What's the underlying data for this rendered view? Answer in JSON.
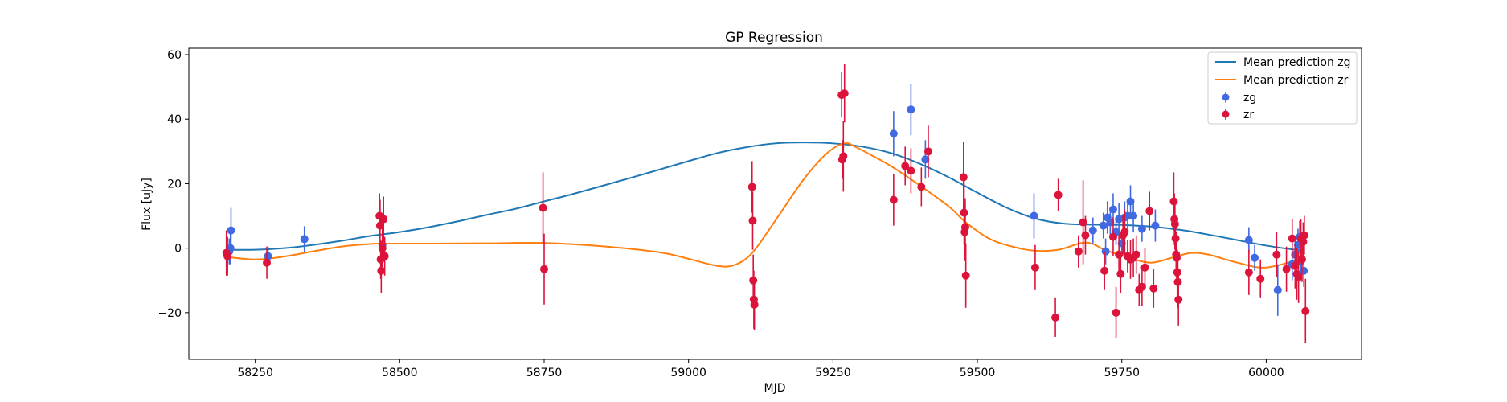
{
  "chart_data": {
    "type": "scatter",
    "title": "GP Regression",
    "xlabel": "MJD",
    "ylabel": "Flux [uJy]",
    "xlim": [
      58135,
      60165
    ],
    "ylim": [
      -34.5,
      62
    ],
    "xticks": [
      58250,
      58500,
      58750,
      59000,
      59250,
      59500,
      59750,
      60000
    ],
    "yticks": [
      -20,
      0,
      20,
      40,
      60
    ],
    "grid": false,
    "legend_position": "top-right",
    "lines": [
      {
        "name": "Mean prediction zg",
        "color": "#1f77b4",
        "x": [
          58200,
          58250,
          58300,
          58350,
          58400,
          58450,
          58500,
          58550,
          58600,
          58650,
          58700,
          58750,
          58800,
          58850,
          58900,
          58950,
          59000,
          59050,
          59100,
          59150,
          59200,
          59250,
          59300,
          59350,
          59400,
          59450,
          59500,
          59550,
          59600,
          59650,
          59700,
          59750,
          59800,
          59850,
          59900,
          59950,
          60000,
          60050,
          60066
        ],
        "y": [
          -0.5,
          -0.5,
          0,
          1,
          2.3,
          3.8,
          5,
          6.5,
          8.3,
          10.3,
          12.2,
          14.5,
          16.8,
          19.3,
          21.8,
          24.4,
          27,
          29.5,
          31.3,
          32.5,
          32.8,
          32.5,
          31.5,
          29.5,
          26.2,
          22,
          17.2,
          12.6,
          9.2,
          7.6,
          7.3,
          7.2,
          6.7,
          5.7,
          4.2,
          2.5,
          0.8,
          -0.5,
          -0.8
        ]
      },
      {
        "name": "Mean prediction zr",
        "color": "#ff7f0e",
        "x": [
          58200,
          58250,
          58300,
          58350,
          58400,
          58450,
          58480,
          58550,
          58650,
          58750,
          58850,
          58950,
          59000,
          59050,
          59080,
          59110,
          59150,
          59200,
          59240,
          59270,
          59290,
          59320,
          59350,
          59400,
          59450,
          59480,
          59520,
          59560,
          59600,
          59640,
          59680,
          59700,
          59720,
          59760,
          59800,
          59840,
          59870,
          59900,
          59950,
          60000,
          60066
        ],
        "y": [
          -2.7,
          -3.5,
          -2.6,
          -1,
          0.5,
          1.3,
          1.4,
          1.4,
          1.5,
          1.6,
          0.6,
          -1.3,
          -3.3,
          -5.5,
          -5.2,
          -1.5,
          8.5,
          21.5,
          29.5,
          32.5,
          31.3,
          28.5,
          25.5,
          19.5,
          13,
          8,
          3,
          0.5,
          -0.8,
          -0.5,
          1.6,
          1.3,
          -0.5,
          -2.8,
          -4.5,
          -2.8,
          -1.5,
          -2,
          -4.5,
          -6,
          -3
        ]
      }
    ],
    "series": [
      {
        "name": "zg",
        "color": "#4169e1",
        "points": [
          {
            "x": 58205,
            "y": -1,
            "err": 4
          },
          {
            "x": 58207,
            "y": 0,
            "err": 5
          },
          {
            "x": 58208,
            "y": 5.5,
            "err": 7
          },
          {
            "x": 58272,
            "y": -2.5,
            "err": 3
          },
          {
            "x": 58335,
            "y": 2.8,
            "err": 4
          },
          {
            "x": 58470,
            "y": 1,
            "err": 4
          },
          {
            "x": 59355,
            "y": 35.5,
            "err": 7
          },
          {
            "x": 59385,
            "y": 43,
            "err": 8
          },
          {
            "x": 59410,
            "y": 27.5,
            "err": 6
          },
          {
            "x": 59598,
            "y": 10,
            "err": 7
          },
          {
            "x": 59700,
            "y": 5.5,
            "err": 4
          },
          {
            "x": 59718,
            "y": 7,
            "err": 4
          },
          {
            "x": 59722,
            "y": -1,
            "err": 4
          },
          {
            "x": 59725,
            "y": 9.5,
            "err": 5
          },
          {
            "x": 59730,
            "y": 8,
            "err": 4
          },
          {
            "x": 59735,
            "y": 12,
            "err": 5
          },
          {
            "x": 59740,
            "y": 5,
            "err": 4
          },
          {
            "x": 59745,
            "y": 9,
            "err": 5
          },
          {
            "x": 59750,
            "y": 1.5,
            "err": 4
          },
          {
            "x": 59755,
            "y": 9.5,
            "err": 5
          },
          {
            "x": 59760,
            "y": 10,
            "err": 5
          },
          {
            "x": 59765,
            "y": 14.5,
            "err": 5
          },
          {
            "x": 59770,
            "y": 10,
            "err": 5
          },
          {
            "x": 59785,
            "y": 6,
            "err": 4
          },
          {
            "x": 59808,
            "y": 7,
            "err": 5
          },
          {
            "x": 59970,
            "y": 2.5,
            "err": 4
          },
          {
            "x": 59980,
            "y": -3,
            "err": 4
          },
          {
            "x": 60020,
            "y": -13,
            "err": 8
          },
          {
            "x": 60045,
            "y": -5,
            "err": 5
          },
          {
            "x": 60050,
            "y": -2,
            "err": 5
          },
          {
            "x": 60055,
            "y": 1,
            "err": 5
          },
          {
            "x": 60058,
            "y": 3.5,
            "err": 5
          },
          {
            "x": 60060,
            "y": -4,
            "err": 5
          },
          {
            "x": 60065,
            "y": -7,
            "err": 5
          }
        ]
      },
      {
        "name": "zr",
        "color": "#dc143c",
        "points": [
          {
            "x": 58200,
            "y": -1.5,
            "err": 7
          },
          {
            "x": 58202,
            "y": -2.5,
            "err": 6
          },
          {
            "x": 58270,
            "y": -4.5,
            "err": 5
          },
          {
            "x": 58465,
            "y": 10,
            "err": 7
          },
          {
            "x": 58466,
            "y": 7,
            "err": 8
          },
          {
            "x": 58467,
            "y": -3.5,
            "err": 6
          },
          {
            "x": 58468,
            "y": -7,
            "err": 7
          },
          {
            "x": 58470,
            "y": 0,
            "err": 6
          },
          {
            "x": 58472,
            "y": 9,
            "err": 7
          },
          {
            "x": 58474,
            "y": -2.5,
            "err": 6
          },
          {
            "x": 58748,
            "y": 12.5,
            "err": 11
          },
          {
            "x": 58750,
            "y": -6.5,
            "err": 11
          },
          {
            "x": 59110,
            "y": 19,
            "err": 8
          },
          {
            "x": 59111,
            "y": 8.5,
            "err": 9
          },
          {
            "x": 59112,
            "y": -10,
            "err": 8
          },
          {
            "x": 59113,
            "y": -16,
            "err": 9
          },
          {
            "x": 59114,
            "y": -17.5,
            "err": 8
          },
          {
            "x": 59265,
            "y": 47.5,
            "err": 7
          },
          {
            "x": 59266,
            "y": 27.5,
            "err": 6
          },
          {
            "x": 59268,
            "y": 28.5,
            "err": 11
          },
          {
            "x": 59270,
            "y": 48,
            "err": 9
          },
          {
            "x": 59355,
            "y": 15,
            "err": 8
          },
          {
            "x": 59375,
            "y": 25.5,
            "err": 6
          },
          {
            "x": 59385,
            "y": 24,
            "err": 7
          },
          {
            "x": 59403,
            "y": 19,
            "err": 6
          },
          {
            "x": 59415,
            "y": 30,
            "err": 8
          },
          {
            "x": 59476,
            "y": 22,
            "err": 11
          },
          {
            "x": 59477,
            "y": 11,
            "err": 10
          },
          {
            "x": 59478,
            "y": 5,
            "err": 9
          },
          {
            "x": 59479,
            "y": 6.5,
            "err": 9
          },
          {
            "x": 59480,
            "y": -8.5,
            "err": 10
          },
          {
            "x": 59600,
            "y": -6,
            "err": 7
          },
          {
            "x": 59635,
            "y": -21.5,
            "err": 6
          },
          {
            "x": 59640,
            "y": 16.5,
            "err": 5
          },
          {
            "x": 59675,
            "y": -1,
            "err": 5
          },
          {
            "x": 59683,
            "y": 8,
            "err": 13
          },
          {
            "x": 59687,
            "y": 4,
            "err": 6
          },
          {
            "x": 59720,
            "y": -7,
            "err": 6
          },
          {
            "x": 59735,
            "y": 3.5,
            "err": 6
          },
          {
            "x": 59740,
            "y": -20,
            "err": 8
          },
          {
            "x": 59745,
            "y": -2,
            "err": 6
          },
          {
            "x": 59748,
            "y": -8,
            "err": 6
          },
          {
            "x": 59752,
            "y": 4,
            "err": 6
          },
          {
            "x": 59755,
            "y": 5,
            "err": 7
          },
          {
            "x": 59760,
            "y": -2.5,
            "err": 5
          },
          {
            "x": 59765,
            "y": -3.5,
            "err": 6
          },
          {
            "x": 59770,
            "y": -3,
            "err": 6
          },
          {
            "x": 59775,
            "y": -2,
            "err": 6
          },
          {
            "x": 59780,
            "y": -13,
            "err": 5
          },
          {
            "x": 59785,
            "y": -12,
            "err": 6
          },
          {
            "x": 59790,
            "y": -6,
            "err": 6
          },
          {
            "x": 59798,
            "y": 11.5,
            "err": 6
          },
          {
            "x": 59805,
            "y": -12.5,
            "err": 6
          },
          {
            "x": 59840,
            "y": 14.5,
            "err": 9
          },
          {
            "x": 59841,
            "y": 9,
            "err": 8
          },
          {
            "x": 59842,
            "y": 7.5,
            "err": 8
          },
          {
            "x": 59843,
            "y": 3,
            "err": 7
          },
          {
            "x": 59844,
            "y": -2,
            "err": 7
          },
          {
            "x": 59845,
            "y": -3,
            "err": 7
          },
          {
            "x": 59846,
            "y": -7.5,
            "err": 7
          },
          {
            "x": 59847,
            "y": -10.5,
            "err": 8
          },
          {
            "x": 59848,
            "y": -16,
            "err": 8
          },
          {
            "x": 59970,
            "y": -7.5,
            "err": 7
          },
          {
            "x": 59990,
            "y": -9.5,
            "err": 6
          },
          {
            "x": 60018,
            "y": -2,
            "err": 7
          },
          {
            "x": 60035,
            "y": -6.5,
            "err": 7
          },
          {
            "x": 60045,
            "y": 3,
            "err": 6
          },
          {
            "x": 60050,
            "y": -5.5,
            "err": 7
          },
          {
            "x": 60053,
            "y": -8,
            "err": 8
          },
          {
            "x": 60056,
            "y": -9,
            "err": 8
          },
          {
            "x": 60060,
            "y": 3,
            "err": 6
          },
          {
            "x": 60062,
            "y": -3.5,
            "err": 7
          },
          {
            "x": 60064,
            "y": 2,
            "err": 6
          },
          {
            "x": 60066,
            "y": 4,
            "err": 6
          },
          {
            "x": 60068,
            "y": -19.5,
            "err": 10
          }
        ]
      }
    ]
  }
}
